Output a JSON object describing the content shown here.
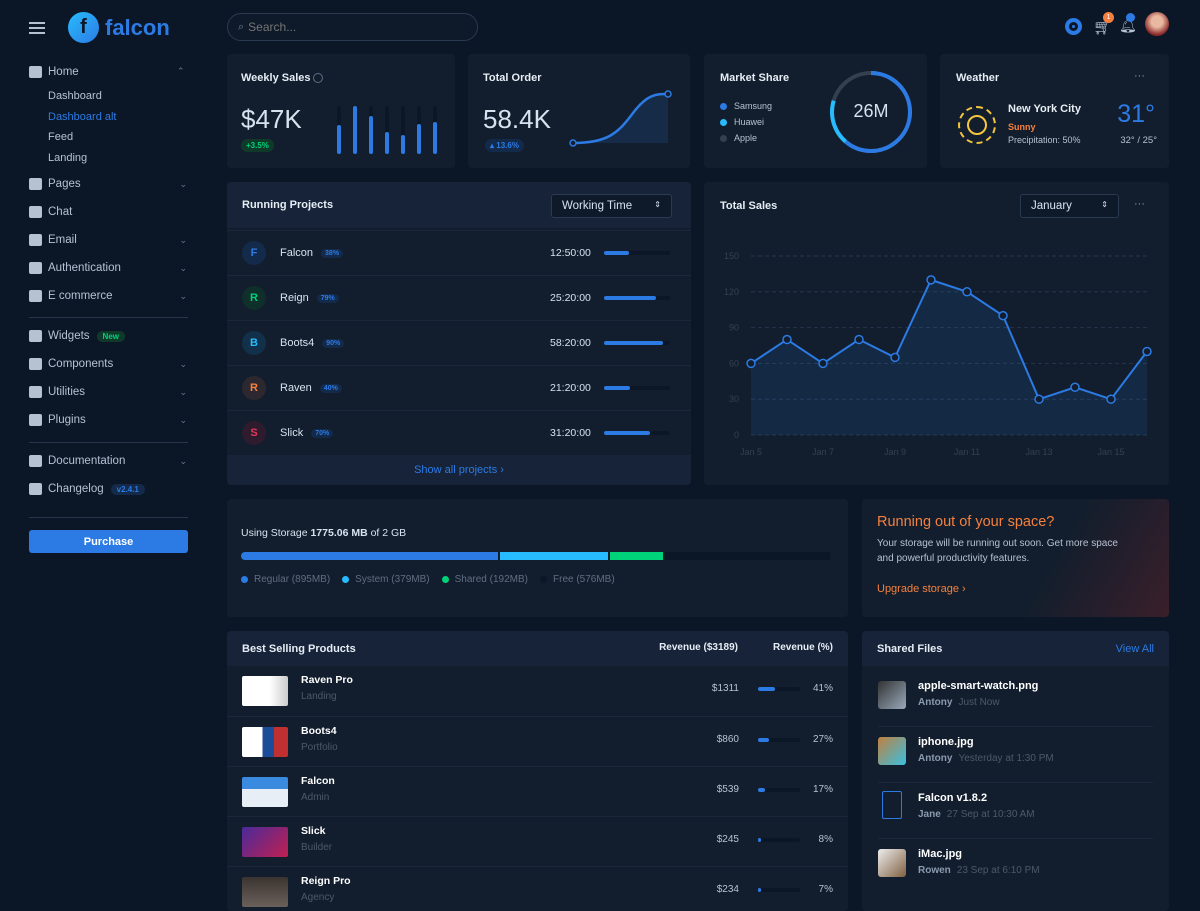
{
  "brand": {
    "name": "falcon"
  },
  "search": {
    "placeholder": "Search..."
  },
  "topbar": {
    "cart_count": "1",
    "icons": [
      "gear-icon",
      "cart-icon",
      "bell-icon",
      "avatar"
    ]
  },
  "sidebar": {
    "home": {
      "label": "Home",
      "sub": [
        "Dashboard",
        "Dashboard alt",
        "Feed",
        "Landing"
      ],
      "active": "Dashboard alt"
    },
    "group1": [
      {
        "label": "Pages",
        "chev": true
      },
      {
        "label": "Chat",
        "chev": false
      },
      {
        "label": "Email",
        "chev": true
      },
      {
        "label": "Authentication",
        "chev": true
      },
      {
        "label": "E commerce",
        "chev": true
      }
    ],
    "group2": [
      {
        "label": "Widgets",
        "badge": "New"
      },
      {
        "label": "Components",
        "chev": true
      },
      {
        "label": "Utilities",
        "chev": true
      },
      {
        "label": "Plugins",
        "chev": true
      }
    ],
    "group3": [
      {
        "label": "Documentation",
        "chev": true
      },
      {
        "label": "Changelog",
        "badge": "v2.4.1"
      }
    ],
    "purchase": "Purchase"
  },
  "weekly_sales": {
    "title": "Weekly Sales",
    "value": "$47K",
    "change": "+3.5%",
    "bars": [
      0.6,
      1.0,
      0.8,
      0.45,
      0.4,
      0.62,
      0.67
    ]
  },
  "total_order": {
    "title": "Total Order",
    "value": "58.4K",
    "change": "13.6%"
  },
  "market_share": {
    "title": "Market Share",
    "total": "26M",
    "legend": [
      {
        "name": "Samsung",
        "color": "#2c7be5"
      },
      {
        "name": "Huawei",
        "color": "#27bcfd"
      },
      {
        "name": "Apple",
        "color": "#344050"
      }
    ]
  },
  "weather": {
    "title": "Weather",
    "city": "New York City",
    "condition": "Sunny",
    "precipitation": "Precipitation: 50%",
    "temp": "31°",
    "range": "32° / 25°"
  },
  "running_projects": {
    "title": "Running Projects",
    "select": "Working Time",
    "footer": "Show all projects ›",
    "items": [
      {
        "letter": "F",
        "name": "Falcon",
        "pct": "38%",
        "progress": 38,
        "time": "12:50:00",
        "color": "#2c7be5",
        "bg": "#132a4a"
      },
      {
        "letter": "R",
        "name": "Reign",
        "pct": "79%",
        "progress": 79,
        "time": "25:20:00",
        "color": "#00d27a",
        "bg": "#0f2f2a"
      },
      {
        "letter": "B",
        "name": "Boots4",
        "pct": "90%",
        "progress": 90,
        "time": "58:20:00",
        "color": "#27bcfd",
        "bg": "#12304a"
      },
      {
        "letter": "R",
        "name": "Raven",
        "pct": "40%",
        "progress": 40,
        "time": "21:20:00",
        "color": "#f5803e",
        "bg": "#2d2830"
      },
      {
        "letter": "S",
        "name": "Slick",
        "pct": "70%",
        "progress": 70,
        "time": "31:20:00",
        "color": "#e63757",
        "bg": "#2e1c2e"
      }
    ]
  },
  "chart_data": {
    "type": "line",
    "title": "Total Sales",
    "select": "January",
    "x": [
      "Jan 5",
      "Jan 6",
      "Jan 7",
      "Jan 8",
      "Jan 9",
      "Jan 10",
      "Jan 11",
      "Jan 12",
      "Jan 13",
      "Jan 14",
      "Jan 15",
      "Jan 16"
    ],
    "values": [
      60,
      80,
      60,
      80,
      65,
      130,
      120,
      100,
      30,
      40,
      30,
      70
    ],
    "xticks": [
      "Jan 5",
      "Jan 7",
      "Jan 9",
      "Jan 11",
      "Jan 13",
      "Jan 15"
    ],
    "yticks": [
      0,
      30,
      60,
      90,
      120,
      150
    ],
    "ylim": [
      0,
      150
    ],
    "grid": true,
    "color": "#2c7be5"
  },
  "storage": {
    "prefix": "Using Storage ",
    "used": "1775.06 MB",
    "suffix": " of 2 GB",
    "segments": [
      {
        "label": "Regular (895MB)",
        "mb": 895,
        "color": "#2c7be5"
      },
      {
        "label": "System (379MB)",
        "mb": 379,
        "color": "#27bcfd"
      },
      {
        "label": "Shared (192MB)",
        "mb": 192,
        "color": "#00d27a"
      },
      {
        "label": "Free (576MB)",
        "mb": 576,
        "color": "#0b1727"
      }
    ]
  },
  "promo": {
    "title": "Running out of your space?",
    "text": "Your storage will be running out soon. Get more space and powerful productivity features.",
    "link": "Upgrade storage ›"
  },
  "products": {
    "title": "Best Selling Products",
    "col1": "Revenue ($3189)",
    "col2": "Revenue (%)",
    "items": [
      {
        "name": "Raven Pro",
        "cat": "Landing",
        "rev": "$1311",
        "pct": "41%",
        "p": 41
      },
      {
        "name": "Boots4",
        "cat": "Portfolio",
        "rev": "$860",
        "pct": "27%",
        "p": 27
      },
      {
        "name": "Falcon",
        "cat": "Admin",
        "rev": "$539",
        "pct": "17%",
        "p": 17
      },
      {
        "name": "Slick",
        "cat": "Builder",
        "rev": "$245",
        "pct": "8%",
        "p": 8
      },
      {
        "name": "Reign Pro",
        "cat": "Agency",
        "rev": "$234",
        "pct": "7%",
        "p": 7
      }
    ]
  },
  "files": {
    "title": "Shared Files",
    "view_all": "View All",
    "items": [
      {
        "name": "apple-smart-watch.png",
        "user": "Antony",
        "time": "Just Now"
      },
      {
        "name": "iphone.jpg",
        "user": "Antony",
        "time": "Yesterday at 1:30 PM"
      },
      {
        "name": "Falcon v1.8.2",
        "user": "Jane",
        "time": "27 Sep at 10:30 AM"
      },
      {
        "name": "iMac.jpg",
        "user": "Rowen",
        "time": "23 Sep at 6:10 PM"
      }
    ]
  }
}
